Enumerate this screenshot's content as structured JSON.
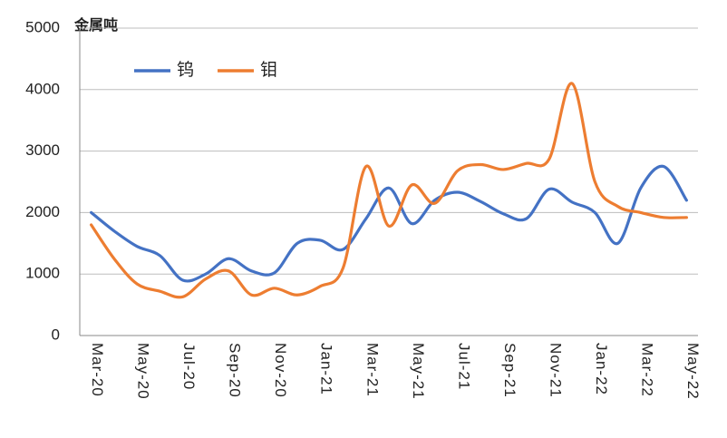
{
  "chart_data": {
    "type": "line",
    "y_label": "金属吨",
    "categories": [
      "Mar-20",
      null,
      "May-20",
      null,
      "Jul-20",
      null,
      "Sep-20",
      null,
      "Nov-20",
      null,
      "Jan-21",
      null,
      "Mar-21",
      null,
      "May-21",
      null,
      "Jul-21",
      null,
      "Sep-21",
      null,
      "Nov-21",
      null,
      "Jan-22",
      null,
      "Mar-22",
      null,
      "May-22"
    ],
    "series": [
      {
        "name": "钨",
        "color": "#4472c4",
        "values": [
          2000,
          1700,
          1450,
          1300,
          900,
          1000,
          1250,
          1050,
          1020,
          1500,
          1550,
          1400,
          1900,
          2400,
          1820,
          2200,
          2330,
          2180,
          1980,
          1900,
          2380,
          2170,
          2000,
          1500,
          2400,
          2750,
          2200
        ]
      },
      {
        "name": "钼",
        "color": "#ed7d31",
        "values": [
          1800,
          1250,
          840,
          720,
          630,
          920,
          1050,
          660,
          770,
          660,
          800,
          1100,
          2750,
          1780,
          2450,
          2150,
          2680,
          2780,
          2700,
          2800,
          2870,
          4100,
          2500,
          2100,
          2000,
          1920,
          1920
        ]
      }
    ],
    "ylim": [
      0,
      5000
    ],
    "yticks": [
      0,
      1000,
      2000,
      3000,
      4000,
      5000
    ],
    "grid": true,
    "legend": "top-left"
  }
}
